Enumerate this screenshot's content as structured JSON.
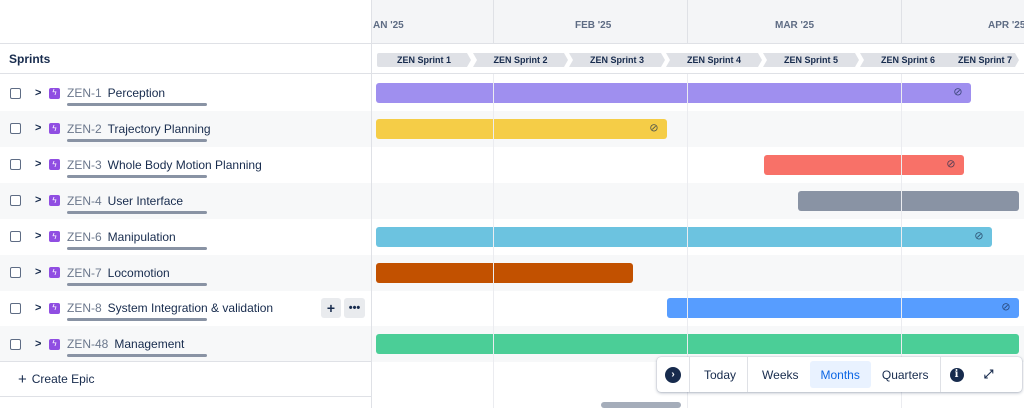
{
  "sidebar": {
    "sprints_label": "Sprints",
    "create_epic_label": "Create Epic",
    "row_add_label": "+",
    "row_more_label": "•••"
  },
  "timeline": {
    "months": [
      "AN '25",
      "FEB '25",
      "MAR '25",
      "APR '25"
    ],
    "sprints": [
      "ZEN Sprint 1",
      "ZEN Sprint 2",
      "ZEN Sprint 3",
      "ZEN Sprint 4",
      "ZEN Sprint 5",
      "ZEN Sprint 6",
      "ZEN Sprint 7"
    ]
  },
  "epics": [
    {
      "key": "ZEN-1",
      "title": "Perception",
      "color": "#9f8fef",
      "has_link": true
    },
    {
      "key": "ZEN-2",
      "title": "Trajectory Planning",
      "color": "#f5cd47",
      "has_link": true
    },
    {
      "key": "ZEN-3",
      "title": "Whole Body Motion Planning",
      "color": "#f87168",
      "has_link": true
    },
    {
      "key": "ZEN-4",
      "title": "User Interface",
      "color": "#8993a4",
      "has_link": false
    },
    {
      "key": "ZEN-6",
      "title": "Manipulation",
      "color": "#6cc3e0",
      "has_link": true
    },
    {
      "key": "ZEN-7",
      "title": "Locomotion",
      "color": "#c25100",
      "has_link": false
    },
    {
      "key": "ZEN-8",
      "title": "System Integration & validation",
      "color": "#579dff",
      "has_link": true
    },
    {
      "key": "ZEN-48",
      "title": "Management",
      "color": "#4bce97",
      "has_link": false
    }
  ],
  "toolbar": {
    "today": "Today",
    "weeks": "Weeks",
    "months": "Months",
    "quarters": "Quarters",
    "active": "Months"
  },
  "icons": {
    "chevron": "chevron-right-icon",
    "epic": "lightning-icon",
    "link": "link-icon",
    "nav": "arrow-right-circle-icon",
    "info": "info-icon",
    "expand": "expand-icon"
  }
}
